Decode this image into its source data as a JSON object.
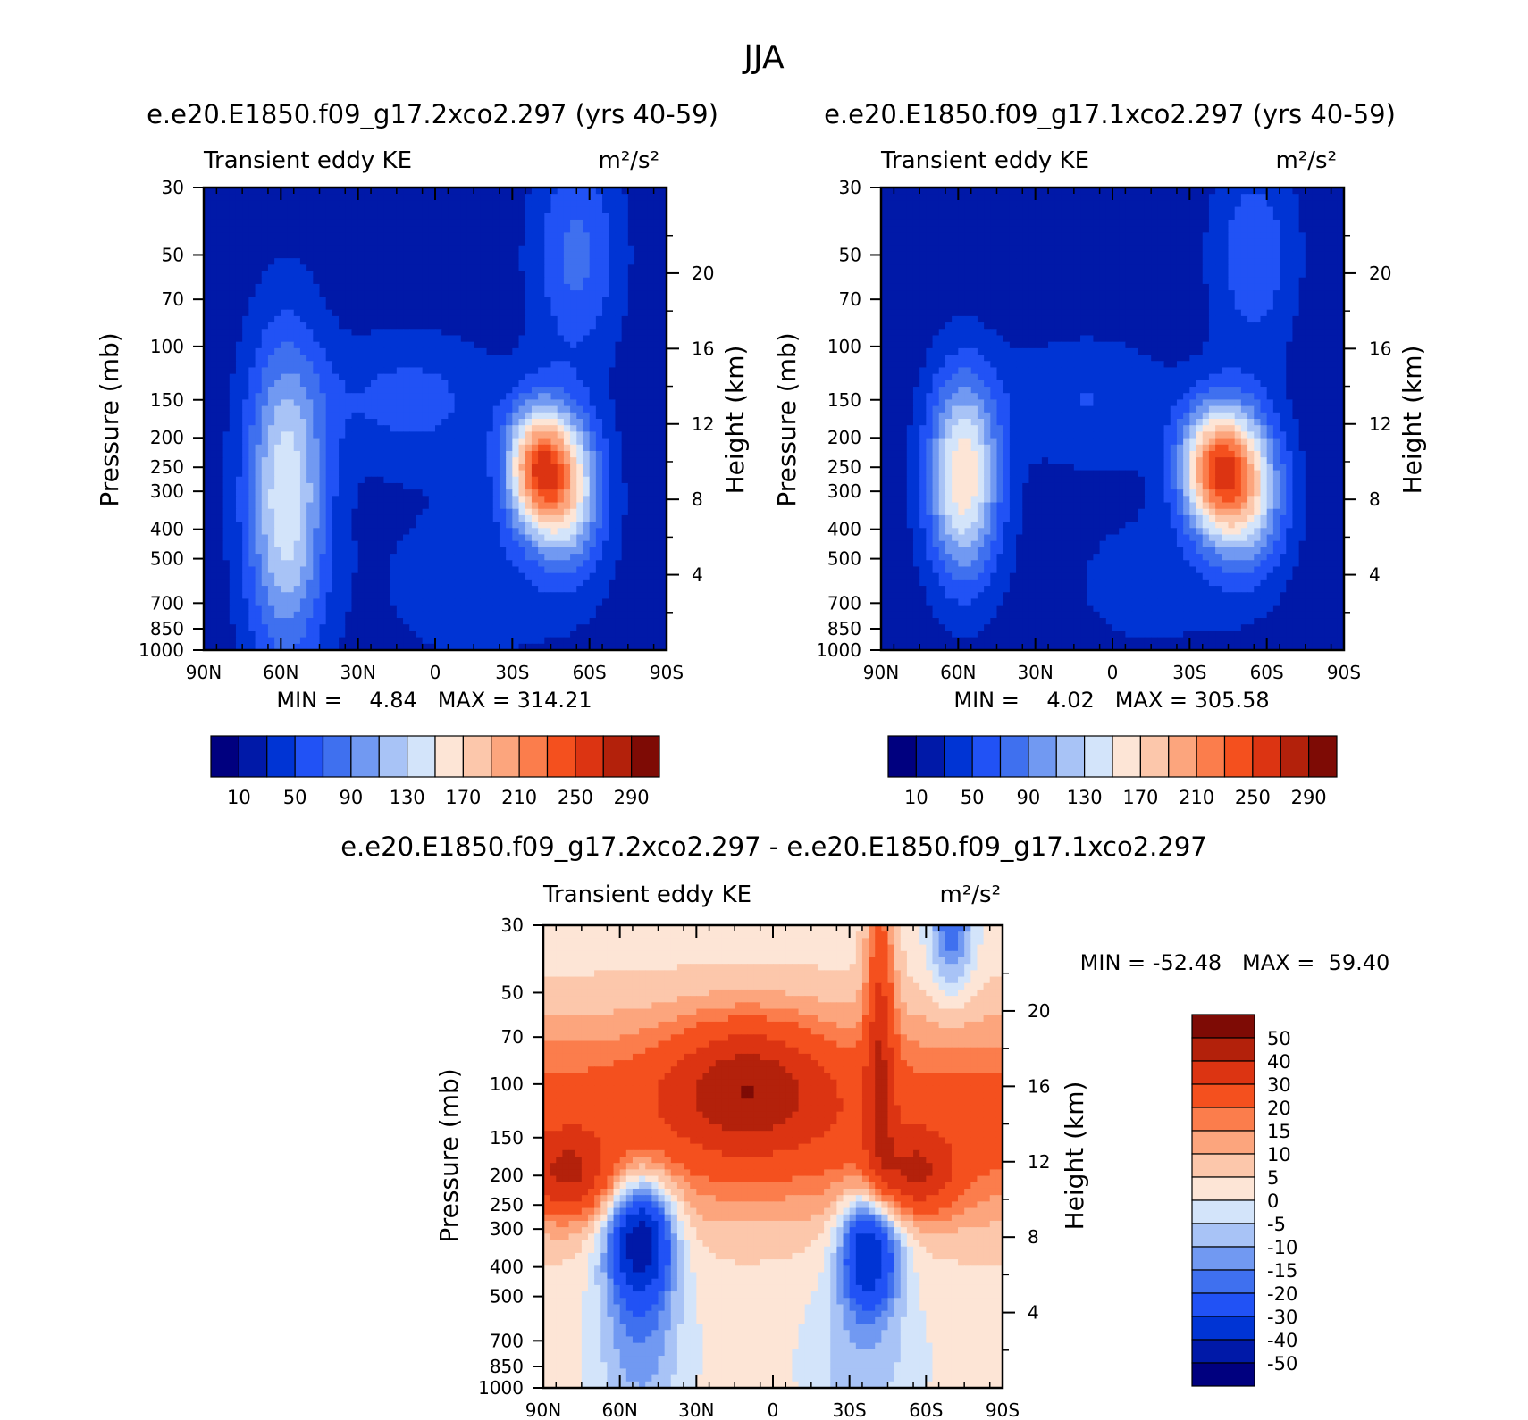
{
  "chart_data": {
    "type": "heatmap",
    "title": "JJA",
    "latitude_ticks": [
      "90N",
      "60N",
      "30N",
      "0",
      "30S",
      "60S",
      "90S"
    ],
    "pressure_ticks": [
      "30",
      "50",
      "70",
      "100",
      "150",
      "200",
      "250",
      "300",
      "400",
      "500",
      "700",
      "850",
      "1000"
    ],
    "pressure_values": [
      30,
      50,
      70,
      100,
      150,
      200,
      250,
      300,
      400,
      500,
      700,
      850,
      1000
    ],
    "height_ticks": [
      "4",
      "8",
      "12",
      "16",
      "20"
    ],
    "height_values": [
      4,
      8,
      12,
      16,
      20
    ],
    "y_label": "Pressure (mb)",
    "y2_label": "Height (km)",
    "panels": [
      {
        "id": "p1",
        "case_title": "e.e20.E1850.f09_g17.2xco2.297 (yrs 40-59)",
        "left_label": "Transient eddy KE",
        "units": "m²/s²",
        "min_max": "MIN =    4.84   MAX = 314.21",
        "min": 4.84,
        "max": 314.21,
        "levels": [
          10,
          30,
          50,
          70,
          90,
          110,
          130,
          150,
          170,
          190,
          210,
          230,
          250,
          270,
          290
        ],
        "level_labels": [
          "10",
          "50",
          "90",
          "130",
          "170",
          "210",
          "250",
          "290"
        ],
        "colors": [
          "#00007f",
          "#0019a8",
          "#0034d4",
          "#2152f5",
          "#3f70ef",
          "#7199f2",
          "#a8c3f6",
          "#d3e4fa",
          "#fde5d6",
          "#fcc7ab",
          "#fca57d",
          "#fb7d4c",
          "#f4501e",
          "#dc3412",
          "#b3210b",
          "#7e0b05"
        ]
      },
      {
        "id": "p2",
        "case_title": "e.e20.E1850.f09_g17.1xco2.297 (yrs 40-59)",
        "left_label": "Transient eddy KE",
        "units": "m²/s²",
        "min_max": "MIN =    4.02   MAX = 305.58",
        "min": 4.02,
        "max": 305.58,
        "levels": [
          10,
          30,
          50,
          70,
          90,
          110,
          130,
          150,
          170,
          190,
          210,
          230,
          250,
          270,
          290
        ],
        "level_labels": [
          "10",
          "50",
          "90",
          "130",
          "170",
          "210",
          "250",
          "290"
        ],
        "colors": [
          "#00007f",
          "#0019a8",
          "#0034d4",
          "#2152f5",
          "#3f70ef",
          "#7199f2",
          "#a8c3f6",
          "#d3e4fa",
          "#fde5d6",
          "#fcc7ab",
          "#fca57d",
          "#fb7d4c",
          "#f4501e",
          "#dc3412",
          "#b3210b",
          "#7e0b05"
        ]
      },
      {
        "id": "p3",
        "case_title": "e.e20.E1850.f09_g17.2xco2.297 - e.e20.E1850.f09_g17.1xco2.297",
        "left_label": "Transient eddy KE",
        "units": "m²/s²",
        "min_max": "MIN = -52.48   MAX =  59.40",
        "min": -52.48,
        "max": 59.4,
        "levels": [
          -50,
          -40,
          -30,
          -20,
          -15,
          -10,
          -5,
          0,
          5,
          10,
          15,
          20,
          30,
          40,
          50
        ],
        "level_labels": [
          "-50",
          "-40",
          "-30",
          "-20",
          "-15",
          "-10",
          "-5",
          "0",
          "5",
          "10",
          "15",
          "20",
          "30",
          "40",
          "50"
        ],
        "colors": [
          "#00007f",
          "#0019a8",
          "#0034d4",
          "#2152f5",
          "#3f70ef",
          "#7199f2",
          "#a8c3f6",
          "#d3e4fa",
          "#fde5d6",
          "#fcc7ab",
          "#fca57d",
          "#fb7d4c",
          "#f4501e",
          "#dc3412",
          "#b3210b",
          "#7e0b05"
        ]
      }
    ]
  }
}
